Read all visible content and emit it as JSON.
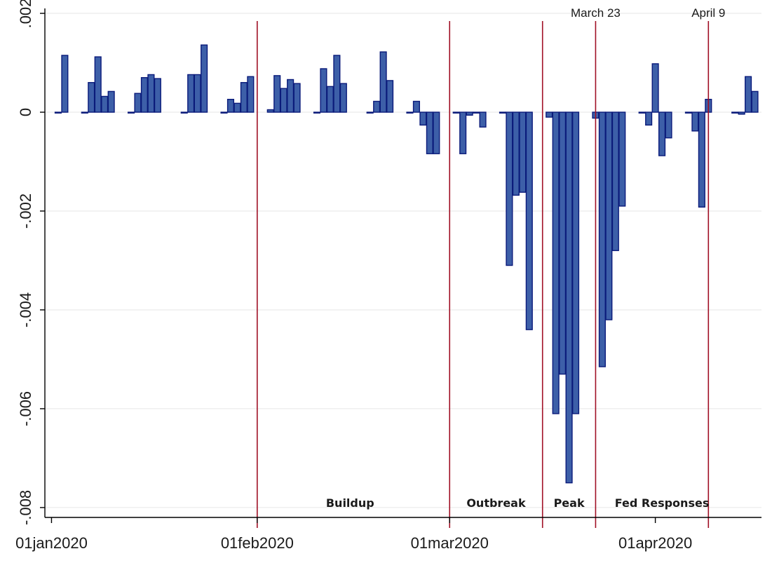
{
  "colors": {
    "bar_fill": "#3d5fa8",
    "bar_stroke": "#0a1a7a",
    "event_line": "#a01025",
    "grid": "#e6e6e6",
    "axis": "#000000"
  },
  "chart_data": {
    "type": "bar",
    "title": "",
    "xlabel": "",
    "ylabel": "",
    "ylim": [
      -0.0082,
      0.0021
    ],
    "grid": true,
    "y_ticks": [
      {
        "value": 0.002,
        "label": ".002"
      },
      {
        "value": 0,
        "label": "0"
      },
      {
        "value": -0.002,
        "label": "-.002"
      },
      {
        "value": -0.004,
        "label": "-.004"
      },
      {
        "value": -0.006,
        "label": "-.006"
      },
      {
        "value": -0.008,
        "label": "-.008"
      }
    ],
    "x_ticks": [
      {
        "date": "2020-01-01",
        "label": "01jan2020"
      },
      {
        "date": "2020-02-01",
        "label": "01feb2020"
      },
      {
        "date": "2020-03-01",
        "label": "01mar2020"
      },
      {
        "date": "2020-04-01",
        "label": "01apr2020"
      }
    ],
    "x_range": [
      "2019-12-31",
      "2020-04-17"
    ],
    "event_lines": [
      {
        "date": "2020-02-01",
        "label": ""
      },
      {
        "date": "2020-03-01",
        "label": ""
      },
      {
        "date": "2020-03-15",
        "label": ""
      },
      {
        "date": "2020-03-23",
        "label": "March 23"
      },
      {
        "date": "2020-04-09",
        "label": "April 9"
      }
    ],
    "period_labels": [
      {
        "text": "Buildup",
        "date": "2020-02-15"
      },
      {
        "text": "Outbreak",
        "date": "2020-03-08"
      },
      {
        "text": "Peak",
        "date": "2020-03-19"
      },
      {
        "text": "Fed Responses",
        "date": "2020-04-02"
      }
    ],
    "x": [
      "2020-01-02",
      "2020-01-03",
      "2020-01-06",
      "2020-01-07",
      "2020-01-08",
      "2020-01-09",
      "2020-01-10",
      "2020-01-13",
      "2020-01-14",
      "2020-01-15",
      "2020-01-16",
      "2020-01-17",
      "2020-01-21",
      "2020-01-22",
      "2020-01-23",
      "2020-01-24",
      "2020-01-27",
      "2020-01-28",
      "2020-01-29",
      "2020-01-30",
      "2020-01-31",
      "2020-02-03",
      "2020-02-04",
      "2020-02-05",
      "2020-02-06",
      "2020-02-07",
      "2020-02-10",
      "2020-02-11",
      "2020-02-12",
      "2020-02-13",
      "2020-02-14",
      "2020-02-18",
      "2020-02-19",
      "2020-02-20",
      "2020-02-21",
      "2020-02-24",
      "2020-02-25",
      "2020-02-26",
      "2020-02-27",
      "2020-02-28",
      "2020-03-02",
      "2020-03-03",
      "2020-03-04",
      "2020-03-05",
      "2020-03-06",
      "2020-03-09",
      "2020-03-10",
      "2020-03-11",
      "2020-03-12",
      "2020-03-13",
      "2020-03-16",
      "2020-03-17",
      "2020-03-18",
      "2020-03-19",
      "2020-03-20",
      "2020-03-23",
      "2020-03-24",
      "2020-03-25",
      "2020-03-26",
      "2020-03-27",
      "2020-03-30",
      "2020-03-31",
      "2020-04-01",
      "2020-04-02",
      "2020-04-03",
      "2020-04-06",
      "2020-04-07",
      "2020-04-08",
      "2020-04-09",
      "2020-04-13",
      "2020-04-14",
      "2020-04-15",
      "2020-04-16"
    ],
    "series": [
      {
        "values": [
          0.0,
          0.00115,
          0.0,
          0.0006,
          0.00112,
          0.00032,
          0.00042,
          0.0,
          0.00038,
          0.0007,
          0.00076,
          0.00068,
          0.0,
          0.00076,
          0.00076,
          0.00136,
          0.0,
          0.00026,
          0.00018,
          0.0006,
          0.00072,
          5e-05,
          0.00074,
          0.00048,
          0.00066,
          0.00058,
          0.0,
          0.00088,
          0.00052,
          0.00115,
          0.00058,
          0.0,
          0.00022,
          0.00122,
          0.00064,
          0.0,
          0.00022,
          -0.00026,
          -0.00084,
          -0.00084,
          0.0,
          -0.00084,
          -6e-05,
          0.0,
          -0.0003,
          0.0,
          -0.0031,
          -0.00168,
          -0.00162,
          -0.0044,
          -0.0001,
          -0.0061,
          -0.0053,
          -0.0075,
          -0.0061,
          -0.00012,
          -0.00515,
          -0.0042,
          -0.0028,
          -0.0019,
          0.0,
          -0.00026,
          0.00098,
          -0.00088,
          -0.00052,
          0.0,
          -0.00038,
          -0.00192,
          0.00026,
          0.0,
          -4e-05,
          0.00072,
          0.00042
        ]
      }
    ]
  }
}
